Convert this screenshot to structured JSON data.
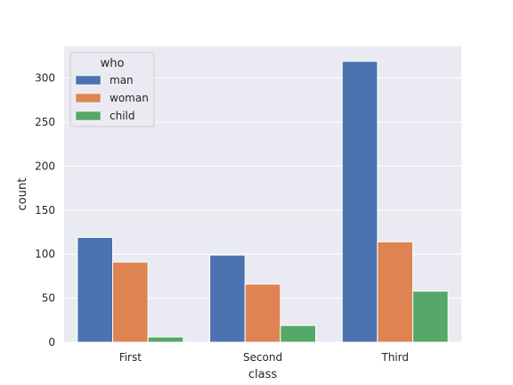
{
  "chart_data": {
    "type": "bar",
    "title": "",
    "xlabel": "class",
    "ylabel": "count",
    "categories": [
      "First",
      "Second",
      "Third"
    ],
    "series": [
      {
        "name": "man",
        "values": [
          119,
          99,
          319
        ],
        "color": "#4c72b0"
      },
      {
        "name": "woman",
        "values": [
          91,
          66,
          114
        ],
        "color": "#dd8452"
      },
      {
        "name": "child",
        "values": [
          6,
          19,
          58
        ],
        "color": "#55a868"
      }
    ],
    "ylim": [
      0,
      336
    ],
    "yticks": [
      0,
      50,
      100,
      150,
      200,
      250,
      300
    ],
    "grid": true,
    "legend": {
      "title": "who",
      "placement": "top-left"
    },
    "background": "#eaeaf2"
  }
}
